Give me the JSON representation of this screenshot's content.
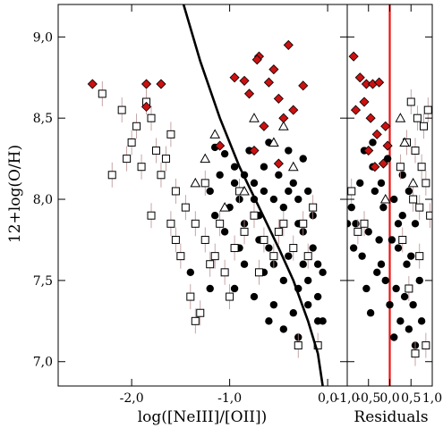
{
  "chart_data": [
    {
      "type": "scatter",
      "xlabel": "log([NeIII]/[OII])",
      "ylabel": "12+log(O/H)",
      "xlim": [
        -2.75,
        0.2
      ],
      "ylim": [
        6.85,
        9.2
      ],
      "x_ticks": [
        -2.0,
        -1.0,
        0.0
      ],
      "x_tick_labels": [
        "-2,0",
        "-1,0",
        "0,0"
      ],
      "y_ticks": [
        7.0,
        7.5,
        8.0,
        8.5,
        9.0
      ],
      "y_tick_labels": [
        "7,0",
        "7,5",
        "8,0",
        "8,5",
        "9,0"
      ],
      "grid": false,
      "series": [
        {
          "marker": "filled-circle",
          "color": "#000000",
          "points": [
            [
              -1.15,
              8.32
            ],
            [
              -1.05,
              8.28
            ],
            [
              -0.95,
              8.2
            ],
            [
              -0.85,
              8.15
            ],
            [
              -0.75,
              8.1
            ],
            [
              -0.65,
              8.05
            ],
            [
              -0.55,
              8.0
            ],
            [
              -0.45,
              7.95
            ],
            [
              -0.35,
              8.1
            ],
            [
              -0.25,
              8.25
            ],
            [
              -0.2,
              8.05
            ],
            [
              -0.15,
              7.9
            ],
            [
              -0.3,
              7.85
            ],
            [
              -0.5,
              7.8
            ],
            [
              -0.7,
              7.75
            ],
            [
              -0.9,
              7.7
            ],
            [
              -1.0,
              7.95
            ],
            [
              -0.8,
              8.3
            ],
            [
              -0.6,
              8.35
            ],
            [
              -0.4,
              8.3
            ],
            [
              -0.85,
              7.6
            ],
            [
              -0.65,
              7.55
            ],
            [
              -0.45,
              7.5
            ],
            [
              -0.3,
              7.45
            ],
            [
              -0.55,
              7.35
            ],
            [
              -0.75,
              7.4
            ],
            [
              -0.95,
              7.45
            ],
            [
              -0.35,
              7.3
            ],
            [
              -0.2,
              7.35
            ],
            [
              -0.1,
              7.4
            ],
            [
              -0.25,
              7.6
            ],
            [
              -0.15,
              7.7
            ],
            [
              -0.05,
              7.55
            ],
            [
              -0.4,
              7.65
            ],
            [
              -0.6,
              7.7
            ],
            [
              -1.05,
              7.8
            ],
            [
              -1.2,
              8.05
            ],
            [
              -1.1,
              8.15
            ],
            [
              -0.9,
              8.0
            ],
            [
              -0.7,
              7.9
            ],
            [
              -0.5,
              8.15
            ],
            [
              -0.3,
              8.0
            ],
            [
              -0.25,
              7.8
            ],
            [
              -0.1,
              7.6
            ],
            [
              -0.45,
              7.2
            ],
            [
              -0.3,
              7.15
            ],
            [
              -0.6,
              7.25
            ],
            [
              -1.2,
              7.45
            ],
            [
              -1.4,
              7.55
            ],
            [
              -0.35,
              7.7
            ],
            [
              -0.55,
              7.6
            ],
            [
              -0.75,
              8.0
            ],
            [
              -0.95,
              8.1
            ],
            [
              -1.15,
              7.9
            ],
            [
              -0.1,
              7.25
            ],
            [
              -0.85,
              7.85
            ],
            [
              -0.65,
              8.2
            ],
            [
              -0.4,
              8.05
            ],
            [
              -0.2,
              7.5
            ],
            [
              -0.05,
              7.25
            ]
          ]
        },
        {
          "marker": "open-square",
          "color": "#000000",
          "points": [
            [
              -2.3,
              8.65
            ],
            [
              -2.1,
              8.55
            ],
            [
              -1.95,
              8.45
            ],
            [
              -1.85,
              8.6
            ],
            [
              -1.75,
              8.3
            ],
            [
              -1.65,
              8.25
            ],
            [
              -1.55,
              8.05
            ],
            [
              -1.45,
              7.95
            ],
            [
              -1.35,
              7.85
            ],
            [
              -1.25,
              7.75
            ],
            [
              -1.15,
              7.65
            ],
            [
              -1.05,
              7.55
            ],
            [
              -0.95,
              7.7
            ],
            [
              -0.85,
              7.8
            ],
            [
              -0.75,
              7.9
            ],
            [
              -0.65,
              7.75
            ],
            [
              -0.55,
              7.65
            ],
            [
              -0.45,
              7.85
            ],
            [
              -0.35,
              7.7
            ],
            [
              -0.25,
              7.85
            ],
            [
              -0.15,
              7.95
            ],
            [
              -2.05,
              8.25
            ],
            [
              -1.9,
              8.2
            ],
            [
              -1.7,
              8.15
            ],
            [
              -1.6,
              7.85
            ],
            [
              -1.5,
              7.65
            ],
            [
              -1.4,
              7.4
            ],
            [
              -1.3,
              7.3
            ],
            [
              -1.2,
              7.6
            ],
            [
              -1.1,
              7.85
            ],
            [
              -2.2,
              8.15
            ],
            [
              -2.0,
              8.35
            ],
            [
              -1.8,
              7.9
            ],
            [
              -1.55,
              7.75
            ],
            [
              -1.35,
              7.25
            ],
            [
              -1.0,
              7.4
            ],
            [
              -0.7,
              7.55
            ],
            [
              -0.5,
              7.8
            ],
            [
              -0.2,
              7.65
            ],
            [
              -0.1,
              7.1
            ],
            [
              -0.3,
              7.1
            ],
            [
              -1.6,
              8.4
            ],
            [
              -1.8,
              8.5
            ],
            [
              -1.25,
              8.1
            ],
            [
              -0.9,
              8.05
            ]
          ]
        },
        {
          "marker": "open-triangle",
          "color": "#000000",
          "points": [
            [
              -1.25,
              8.25
            ],
            [
              -1.15,
              8.4
            ],
            [
              -0.85,
              8.05
            ],
            [
              -0.55,
              8.35
            ],
            [
              -0.35,
              8.2
            ],
            [
              -1.35,
              8.1
            ],
            [
              -0.75,
              8.5
            ],
            [
              -0.45,
              8.45
            ],
            [
              -1.05,
              7.95
            ]
          ]
        },
        {
          "marker": "filled-diamond",
          "color": "#cc1111",
          "points": [
            [
              -2.4,
              8.71
            ],
            [
              -1.85,
              8.71
            ],
            [
              -1.7,
              8.71
            ],
            [
              -1.85,
              8.57
            ],
            [
              -0.7,
              8.88
            ],
            [
              -0.72,
              8.86
            ],
            [
              -0.6,
              8.72
            ],
            [
              -0.5,
              8.62
            ],
            [
              -0.95,
              8.75
            ],
            [
              -0.8,
              8.65
            ],
            [
              -0.45,
              8.5
            ],
            [
              -0.35,
              8.55
            ],
            [
              -0.25,
              8.7
            ],
            [
              -0.4,
              8.95
            ],
            [
              -1.1,
              8.33
            ],
            [
              -0.75,
              8.3
            ],
            [
              -0.5,
              8.22
            ],
            [
              -0.55,
              8.8
            ],
            [
              -0.85,
              8.73
            ],
            [
              -0.65,
              8.45
            ]
          ]
        }
      ],
      "curve": {
        "style": "solid",
        "color": "#000000",
        "points": [
          [
            -1.47,
            9.2
          ],
          [
            -1.3,
            8.85
          ],
          [
            -1.1,
            8.5
          ],
          [
            -0.9,
            8.2
          ],
          [
            -0.7,
            7.95
          ],
          [
            -0.5,
            7.7
          ],
          [
            -0.35,
            7.5
          ],
          [
            -0.2,
            7.25
          ],
          [
            -0.1,
            7.05
          ],
          [
            -0.05,
            6.85
          ]
        ]
      }
    },
    {
      "type": "scatter",
      "xlabel": "Residuals",
      "xlim": [
        -1.0,
        1.0
      ],
      "ylim": [
        6.85,
        9.2
      ],
      "x_ticks": [
        -1.0,
        -0.5,
        0.0,
        0.5,
        1.0
      ],
      "x_tick_labels": [
        "-1,0",
        "-0,5",
        "0,0",
        "0,5",
        "1,0"
      ],
      "reference_line": {
        "x": 0.0,
        "color": "#ee1111"
      },
      "series": [
        {
          "marker": "filled-circle",
          "color": "#000000",
          "points": [
            [
              -0.6,
              8.3
            ],
            [
              -0.4,
              8.2
            ],
            [
              -0.2,
              8.1
            ],
            [
              0.1,
              8.0
            ],
            [
              0.3,
              7.9
            ],
            [
              -0.8,
              7.85
            ],
            [
              -0.5,
              7.8
            ],
            [
              0.05,
              7.75
            ],
            [
              0.2,
              7.7
            ],
            [
              0.4,
              7.6
            ],
            [
              -0.3,
              7.55
            ],
            [
              -0.1,
              7.5
            ],
            [
              0.15,
              7.45
            ],
            [
              0.35,
              7.4
            ],
            [
              0.55,
              7.35
            ],
            [
              -0.45,
              7.3
            ],
            [
              0.25,
              7.25
            ],
            [
              0.45,
              7.2
            ],
            [
              0.1,
              7.15
            ],
            [
              0.6,
              7.1
            ],
            [
              -0.7,
              8.1
            ],
            [
              -0.35,
              8.05
            ],
            [
              -0.15,
              7.95
            ],
            [
              0.2,
              7.85
            ],
            [
              0.5,
              7.65
            ],
            [
              -0.65,
              7.65
            ],
            [
              -0.25,
              7.75
            ],
            [
              0.3,
              8.15
            ],
            [
              0.45,
              8.05
            ],
            [
              -0.05,
              8.25
            ],
            [
              -1.0,
              7.85
            ],
            [
              -0.9,
              7.95
            ],
            [
              0.7,
              7.5
            ],
            [
              0.6,
              7.85
            ],
            [
              -0.55,
              7.45
            ],
            [
              -0.85,
              7.7
            ],
            [
              0.75,
              7.25
            ],
            [
              -0.4,
              8.35
            ],
            [
              0.0,
              7.35
            ],
            [
              -0.2,
              7.6
            ]
          ]
        },
        {
          "marker": "open-square",
          "color": "#000000",
          "points": [
            [
              0.5,
              8.6
            ],
            [
              0.65,
              8.5
            ],
            [
              0.8,
              8.45
            ],
            [
              0.9,
              8.55
            ],
            [
              0.4,
              8.35
            ],
            [
              0.6,
              8.3
            ],
            [
              0.75,
              8.2
            ],
            [
              0.85,
              8.1
            ],
            [
              0.55,
              8.0
            ],
            [
              0.7,
              7.95
            ],
            [
              -0.75,
              7.8
            ],
            [
              -0.6,
              7.85
            ],
            [
              0.3,
              7.75
            ],
            [
              0.45,
              7.45
            ],
            [
              0.85,
              7.1
            ],
            [
              0.6,
              7.05
            ],
            [
              -0.9,
              8.05
            ],
            [
              0.25,
              8.2
            ],
            [
              0.95,
              7.9
            ],
            [
              0.7,
              7.65
            ]
          ]
        },
        {
          "marker": "open-triangle",
          "color": "#000000",
          "points": [
            [
              0.25,
              8.5
            ],
            [
              0.35,
              8.35
            ],
            [
              -0.1,
              8.0
            ],
            [
              0.55,
              8.1
            ]
          ]
        },
        {
          "marker": "filled-diamond",
          "color": "#cc1111",
          "points": [
            [
              -0.85,
              8.88
            ],
            [
              -0.7,
              8.75
            ],
            [
              -0.55,
              8.71
            ],
            [
              -0.4,
              8.71
            ],
            [
              -0.6,
              8.6
            ],
            [
              -0.25,
              8.72
            ],
            [
              -0.45,
              8.5
            ],
            [
              -0.1,
              8.45
            ],
            [
              -0.3,
              8.4
            ],
            [
              -0.8,
              8.55
            ],
            [
              -0.5,
              8.3
            ],
            [
              -0.15,
              8.22
            ],
            [
              -0.05,
              8.33
            ],
            [
              -0.35,
              8.2
            ]
          ]
        }
      ]
    }
  ]
}
